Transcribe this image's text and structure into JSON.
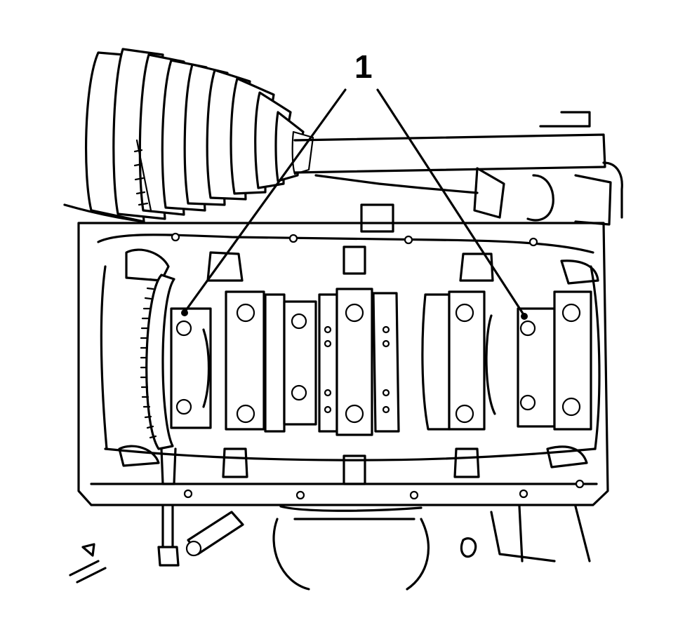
{
  "callout": {
    "label": "1"
  }
}
